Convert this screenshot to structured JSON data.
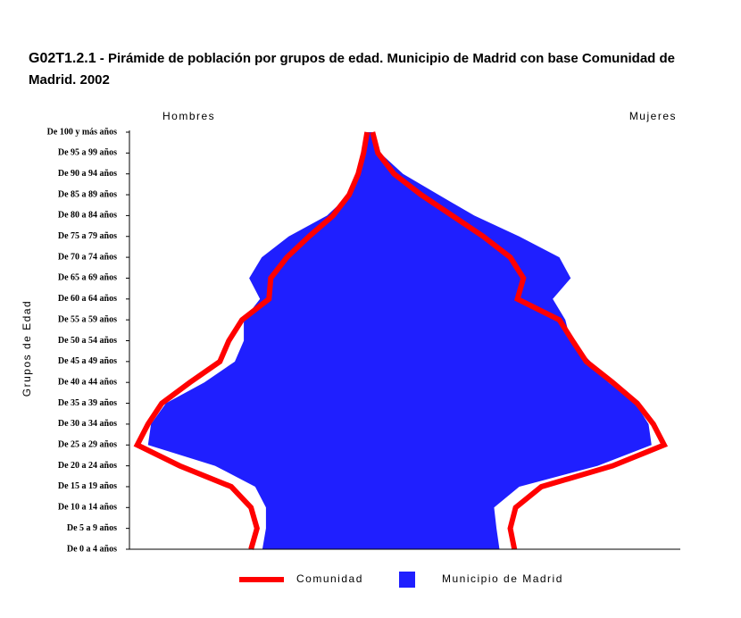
{
  "chart_data": {
    "type": "pyramid",
    "title_code": "G02T1.2.1",
    "title": "- Pirámide de población por grupos de edad. Municipio de Madrid con base Comunidad de Madrid. 2002",
    "y_label": "Grupos de Edad",
    "left_label": "Hombres",
    "right_label": "Mujeres",
    "categories": [
      "De 0 a 4 años",
      "De 5 a 9 años",
      "De 10 a 14 años",
      "De 15 a 19 años",
      "De 20 a 24 años",
      "De 25 a 29 años",
      "De 30 a 34 años",
      "De 35 a 39 años",
      "De 40 a 44 años",
      "De 45 a 49 años",
      "De 50 a 54 años",
      "De 55 a 59 años",
      "De 60 a 64 años",
      "De 65 a 69 años",
      "De 70 a 74 años",
      "De 75 a 79 años",
      "De 80 a 84 años",
      "De 85 a 89 años",
      "De 90 a 94 años",
      "De 95 a 99 años",
      "De 100 y más años"
    ],
    "xlim": [
      -4,
      5.2
    ],
    "series": [
      {
        "name": "Municipio de Madrid",
        "color": "#1f1fff",
        "style": "area",
        "left_values": [
          1.78,
          1.72,
          1.72,
          1.9,
          2.57,
          3.69,
          3.64,
          3.39,
          2.75,
          2.24,
          2.09,
          2.09,
          1.82,
          2.0,
          1.79,
          1.34,
          0.7,
          0.33,
          0.15,
          0.06,
          0.03
        ],
        "right_values": [
          2.18,
          2.13,
          2.09,
          2.51,
          3.82,
          4.72,
          4.67,
          4.45,
          4.0,
          3.7,
          3.37,
          3.28,
          3.07,
          3.37,
          3.18,
          2.51,
          1.76,
          1.16,
          0.57,
          0.19,
          0.06
        ]
      },
      {
        "name": "Comunidad",
        "color": "#ff0000",
        "style": "line",
        "left_values": [
          1.97,
          1.87,
          1.97,
          2.3,
          3.16,
          3.87,
          3.69,
          3.46,
          2.99,
          2.49,
          2.34,
          2.12,
          1.67,
          1.64,
          1.37,
          1.0,
          0.6,
          0.33,
          0.18,
          0.09,
          0.03
        ],
        "right_values": [
          2.43,
          2.36,
          2.45,
          2.88,
          4.07,
          4.93,
          4.75,
          4.48,
          4.07,
          3.63,
          3.4,
          3.18,
          2.48,
          2.58,
          2.36,
          1.91,
          1.39,
          0.87,
          0.42,
          0.15,
          0.06
        ]
      }
    ]
  }
}
